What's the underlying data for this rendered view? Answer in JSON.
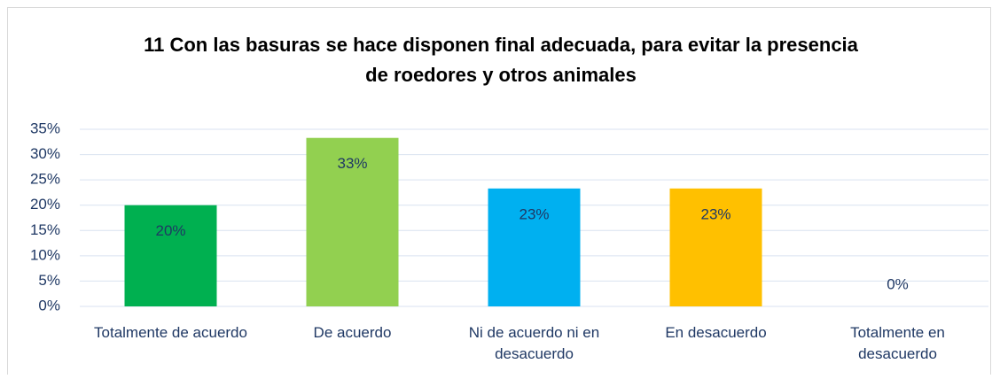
{
  "chart_data": {
    "type": "bar",
    "title": "11 Con las basuras se hace disponen final adecuada, para evitar la presencia de roedores y otros animales",
    "categories": [
      "Totalmente de acuerdo",
      "De acuerdo",
      "Ni de acuerdo ni en desacuerdo",
      "En desacuerdo",
      "Totalmente en desacuerdo"
    ],
    "values": [
      20,
      33.3,
      23.3,
      23.3,
      0
    ],
    "value_labels": [
      "20%",
      "33%",
      "23%",
      "23%",
      "0%"
    ],
    "colors": [
      "#00b050",
      "#92d050",
      "#00b0f0",
      "#ffc000",
      "#7030a0"
    ],
    "ylim": [
      0,
      35
    ],
    "yticks": [
      {
        "value": 0,
        "label": "0%"
      },
      {
        "value": 5,
        "label": "5%"
      },
      {
        "value": 10,
        "label": "10%"
      },
      {
        "value": 15,
        "label": "15%"
      },
      {
        "value": 20,
        "label": "20%"
      },
      {
        "value": 25,
        "label": "25%"
      },
      {
        "value": 30,
        "label": "30%"
      },
      {
        "value": 35,
        "label": "35%"
      }
    ],
    "grid": true
  }
}
